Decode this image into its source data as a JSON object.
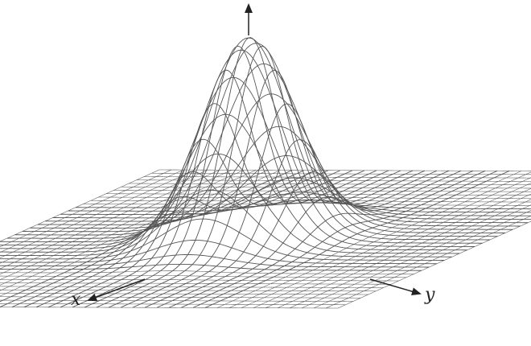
{
  "axes": {
    "x_label": "x",
    "y_label": "y"
  },
  "surface": {
    "function": "gaussian-peak",
    "peak_value": 1.0,
    "grid_resolution": 41,
    "domain": [
      -4,
      4
    ]
  },
  "colors": {
    "mesh_line": "#555555",
    "axis": "#222222",
    "background": "#ffffff"
  },
  "icons": {
    "axis_arrowheads": "arrowhead-icon"
  }
}
